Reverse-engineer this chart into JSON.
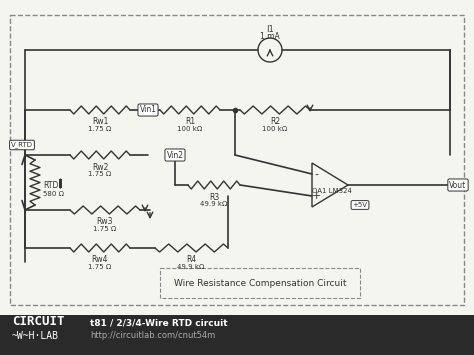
{
  "bg_color": "#f5f5f0",
  "footer_color": "#2a2a2a",
  "border_color": "#888888",
  "wire_color": "#333333",
  "component_color": "#333333",
  "label_color": "#333333",
  "title": "t81 / 2/3/4-Wire RTD circuit",
  "subtitle": "http://circuitlab.com/cnut54m",
  "circuit_label": "Wire Resistance Compensation Circuit",
  "logo_text1": "CIRCUIT",
  "logo_text2": "H·LAB",
  "logo_waves": "~W~",
  "components": {
    "Rw1": {
      "label": "Rw1",
      "value": "1.75 Ω"
    },
    "Rw2": {
      "label": "Rw2",
      "value": "1.75 Ω"
    },
    "Rw3": {
      "label": "Rw3",
      "value": "1.75 Ω"
    },
    "Rw4": {
      "label": "Rw4",
      "value": "1.75 Ω"
    },
    "R1": {
      "label": "R1",
      "value": "100 kΩ"
    },
    "R2": {
      "label": "R2",
      "value": "100 kΩ"
    },
    "R3": {
      "label": "R3",
      "value": "49.9 kΩ"
    },
    "R4": {
      "label": "R4",
      "value": "49.9 kΩ"
    },
    "RTD": {
      "label": "RTD",
      "value": "580 Ω"
    },
    "I1": {
      "label": "I1",
      "value": "1 mA"
    },
    "OA1": {
      "label": "OA1 LM324"
    },
    "Vout": {
      "label": "Vout"
    },
    "V_RTD": {
      "label": "V_RTD"
    },
    "Vin1": {
      "label": "Vin1"
    },
    "Vin2": {
      "label": "Vin2"
    },
    "Vplus": {
      "label": "+5V"
    }
  }
}
